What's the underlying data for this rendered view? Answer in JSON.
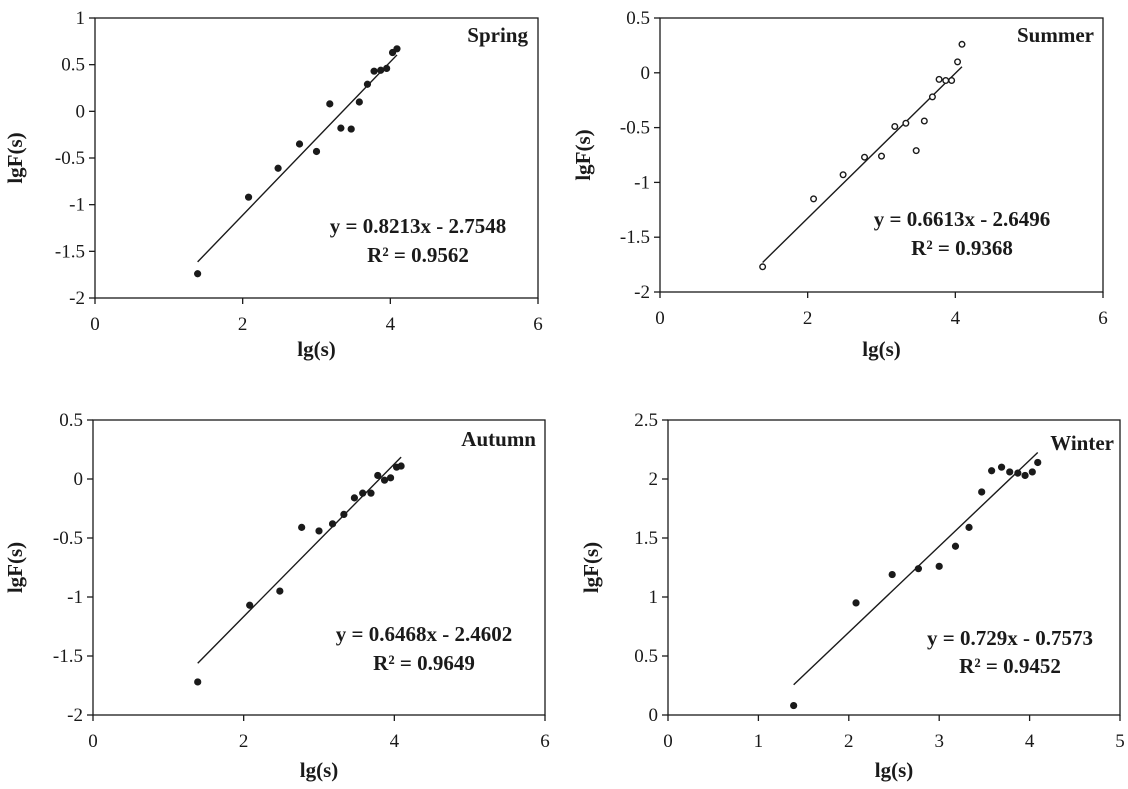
{
  "chart_data": [
    {
      "type": "scatter",
      "title": "Spring",
      "xlabel": "lg(s)",
      "ylabel": "lgF(s)",
      "xlim": [
        0,
        6
      ],
      "ylim": [
        -2,
        1
      ],
      "xticks": [
        0,
        2,
        4,
        6
      ],
      "yticks": [
        -2,
        -1.5,
        -1,
        -0.5,
        0,
        0.5,
        1
      ],
      "x": [
        1.39,
        2.08,
        2.48,
        2.77,
        3.0,
        3.18,
        3.33,
        3.47,
        3.58,
        3.69,
        3.78,
        3.87,
        3.95,
        4.03,
        4.09
      ],
      "y": [
        -1.74,
        -0.92,
        -0.61,
        -0.35,
        -0.43,
        0.08,
        -0.18,
        -0.19,
        0.1,
        0.29,
        0.43,
        0.44,
        0.46,
        0.63,
        0.67
      ],
      "fit": {
        "slope": 0.8213,
        "intercept": -2.7548,
        "x_range": [
          1.39,
          4.09
        ]
      },
      "equation_label": "y = 0.8213x - 2.7548",
      "r2_label": "R² = 0.9562",
      "marker": "filled"
    },
    {
      "type": "scatter",
      "title": "Summer",
      "xlabel": "lg(s)",
      "ylabel": "lgF(s)",
      "xlim": [
        0,
        6
      ],
      "ylim": [
        -2,
        0.5
      ],
      "xticks": [
        0,
        2,
        4,
        6
      ],
      "yticks": [
        -2,
        -1.5,
        -1,
        -0.5,
        0,
        0.5
      ],
      "x": [
        1.39,
        2.08,
        2.48,
        2.77,
        3.0,
        3.18,
        3.33,
        3.47,
        3.58,
        3.69,
        3.78,
        3.87,
        3.95,
        4.03,
        4.09
      ],
      "y": [
        -1.77,
        -1.15,
        -0.93,
        -0.77,
        -0.76,
        -0.49,
        -0.46,
        -0.71,
        -0.44,
        -0.22,
        -0.06,
        -0.07,
        -0.07,
        0.1,
        0.26
      ],
      "fit": {
        "slope": 0.6613,
        "intercept": -2.6496,
        "x_range": [
          1.39,
          4.09
        ]
      },
      "equation_label": "y = 0.6613x - 2.6496",
      "r2_label": "R² = 0.9368",
      "marker": "open"
    },
    {
      "type": "scatter",
      "title": "Autumn",
      "xlabel": "lg(s)",
      "ylabel": "lgF(s)",
      "xlim": [
        0,
        6
      ],
      "ylim": [
        -2,
        0.5
      ],
      "xticks": [
        0,
        2,
        4,
        6
      ],
      "yticks": [
        -2,
        -1.5,
        -1,
        -0.5,
        0,
        0.5
      ],
      "x": [
        1.39,
        2.08,
        2.48,
        2.77,
        3.0,
        3.18,
        3.33,
        3.47,
        3.58,
        3.69,
        3.78,
        3.87,
        3.95,
        4.03,
        4.09
      ],
      "y": [
        -1.72,
        -1.07,
        -0.95,
        -0.41,
        -0.44,
        -0.38,
        -0.3,
        -0.16,
        -0.12,
        -0.12,
        0.03,
        -0.01,
        0.01,
        0.1,
        0.11
      ],
      "fit": {
        "slope": 0.6468,
        "intercept": -2.4602,
        "x_range": [
          1.39,
          4.09
        ]
      },
      "equation_label": "y = 0.6468x - 2.4602",
      "r2_label": "R² = 0.9649",
      "marker": "filled"
    },
    {
      "type": "scatter",
      "title": "Winter",
      "xlabel": "lg(s)",
      "ylabel": "lgF(s)",
      "xlim": [
        0,
        5
      ],
      "ylim": [
        0,
        2.5
      ],
      "xticks": [
        0,
        1,
        2,
        3,
        4,
        5
      ],
      "yticks": [
        0,
        0.5,
        1,
        1.5,
        2,
        2.5
      ],
      "x": [
        1.39,
        2.08,
        2.48,
        2.77,
        3.0,
        3.18,
        3.33,
        3.47,
        3.58,
        3.69,
        3.78,
        3.87,
        3.95,
        4.03,
        4.09
      ],
      "y": [
        0.08,
        0.95,
        1.19,
        1.24,
        1.26,
        1.43,
        1.59,
        1.89,
        2.07,
        2.1,
        2.06,
        2.05,
        2.03,
        2.06,
        2.14
      ],
      "fit": {
        "slope": 0.729,
        "intercept": -0.7573,
        "x_range": [
          1.39,
          4.09
        ]
      },
      "equation_label": "y = 0.729x - 0.7573",
      "r2_label": "R² = 0.9452",
      "marker": "filled"
    }
  ]
}
